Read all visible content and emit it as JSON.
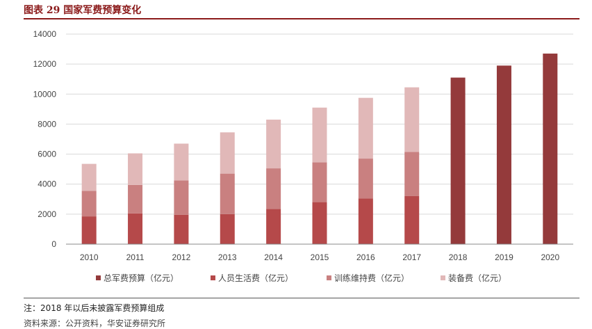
{
  "header": {
    "title": "图表 29  国家军费预算变化"
  },
  "note": "注：2018 年以后未披露军费预算组成",
  "source": "资料来源：公开资料，华安证券研究所",
  "chart_data": {
    "type": "bar",
    "stacked": true,
    "categories": [
      "2010",
      "2011",
      "2012",
      "2013",
      "2014",
      "2015",
      "2016",
      "2017",
      "2018",
      "2019",
      "2020"
    ],
    "ylim": [
      0,
      14000
    ],
    "yticks": [
      0,
      2000,
      4000,
      6000,
      8000,
      10000,
      12000,
      14000
    ],
    "grid": true,
    "legend_position": "bottom",
    "series": [
      {
        "name": "总军费预算（亿元）",
        "color": "#943a3b",
        "values": [
          null,
          null,
          null,
          null,
          null,
          null,
          null,
          null,
          11100,
          11900,
          12700
        ]
      },
      {
        "name": "人员生活费（亿元）",
        "color": "#b5494a",
        "values": [
          1850,
          2050,
          1950,
          2000,
          2350,
          2800,
          3050,
          3200,
          null,
          null,
          null
        ]
      },
      {
        "name": "训练维持费（亿元）",
        "color": "#c98080",
        "values": [
          1700,
          1900,
          2300,
          2700,
          2700,
          2650,
          2650,
          2950,
          null,
          null,
          null
        ]
      },
      {
        "name": "装备费（亿元）",
        "color": "#e1b8b8",
        "values": [
          1800,
          2100,
          2450,
          2750,
          3250,
          3650,
          4050,
          4300,
          null,
          null,
          null
        ]
      }
    ]
  }
}
